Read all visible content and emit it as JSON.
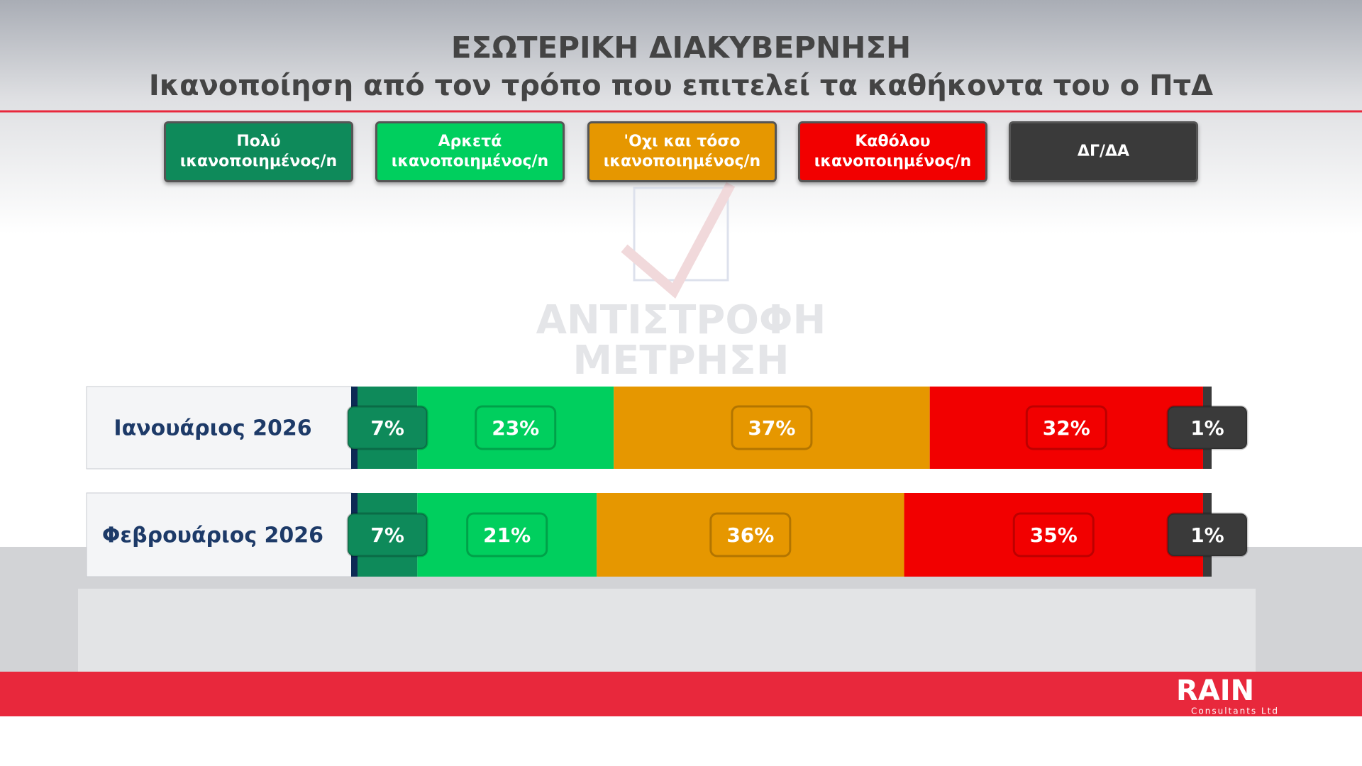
{
  "chart_data": {
    "type": "stacked-bar",
    "title": "ΕΣΩΤΕΡΙΚΗ ΔΙΑΚΥΒΕΡΝΗΣΗ",
    "subtitle": "Ικανοποίηση από τον τρόπο που επιτελεί τα καθήκοντα του ο ΠτΔ",
    "categories": [
      "Ιανουάριος 2026",
      "Φεβρουάριος 2026"
    ],
    "series": [
      {
        "name": "Πολύ ικανοποιημένος/n",
        "color": "#0e8a5a",
        "values": [
          7,
          7
        ],
        "value_labels": [
          "7%",
          "7%"
        ]
      },
      {
        "name": "Αρκετά ικανοποιημένος/n",
        "color": "#00cf5e",
        "values": [
          23,
          21
        ],
        "value_labels": [
          "23%",
          "21%"
        ]
      },
      {
        "name": "'Οχι και τόσο ικανοποιημένος/n",
        "color": "#e69700",
        "values": [
          37,
          36
        ],
        "value_labels": [
          "37%",
          "36%"
        ]
      },
      {
        "name": "Καθόλου ικανοποιημένος/n",
        "color": "#f20000",
        "values": [
          32,
          35
        ],
        "value_labels": [
          "32%",
          "35%"
        ]
      },
      {
        "name": "ΔΓ/ΔΑ",
        "color": "#3a3a3a",
        "values": [
          1,
          1
        ],
        "value_labels": [
          "1%",
          "1%"
        ]
      }
    ]
  },
  "watermark": [
    "ΑΝΤΙΣΤΡΟΦΗ",
    "ΜΕΤΡΗΣΗ"
  ],
  "logo": {
    "name": "RAIN",
    "subtitle": "Consultants Ltd"
  }
}
